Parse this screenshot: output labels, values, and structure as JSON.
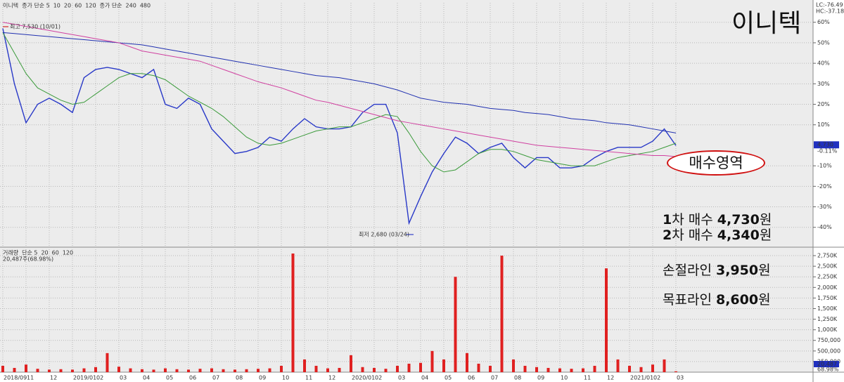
{
  "overlay": {
    "title": "이니텍",
    "zone_label": "매수영역",
    "plans": [
      {
        "num": "1",
        "label": "차 매수",
        "price": "4,730",
        "unit": "원"
      },
      {
        "num": "2",
        "label": "차 매수",
        "price": "4,340",
        "unit": "원"
      },
      {
        "label": "손절라인",
        "price": "3,950",
        "unit": "원"
      },
      {
        "label": "목표라인",
        "price": "8,600",
        "unit": "원"
      }
    ]
  },
  "chart_data": [
    {
      "type": "line",
      "categories": [
        "2018/09",
        null,
        "11",
        null,
        "12",
        null,
        "2019/01",
        null,
        "02",
        null,
        "03",
        null,
        "04",
        null,
        "05",
        null,
        "06",
        null,
        "07",
        null,
        "08",
        null,
        "09",
        null,
        "10",
        null,
        "11",
        null,
        "12",
        null,
        "2020/01",
        null,
        "02",
        null,
        "03",
        null,
        "04",
        null,
        "05",
        null,
        "06",
        null,
        "07",
        null,
        "08",
        null,
        "09",
        null,
        "10",
        null,
        "11",
        null,
        "12",
        null,
        "2021/01",
        null,
        "02",
        null,
        "03"
      ],
      "series": [
        {
          "name": "이니텍",
          "color": "#2838c8",
          "values": [
            57,
            30,
            11,
            20,
            23,
            20,
            16,
            33,
            37,
            38,
            37,
            35,
            33,
            37,
            20,
            18,
            23,
            20,
            8,
            2,
            -4,
            -3,
            -1,
            4,
            2,
            8,
            13,
            9,
            8,
            8,
            9,
            16,
            20,
            20,
            6,
            -38,
            -25,
            -13,
            -4,
            4,
            1,
            -4,
            -1,
            1,
            -6,
            -11,
            -6,
            -6,
            -11,
            -11,
            -10,
            -6,
            -3,
            -1,
            -1,
            -1,
            2,
            8,
            -0.11
          ]
        },
        {
          "name": "60",
          "color": "#3a9a3a",
          "values": [
            55,
            45,
            35,
            28,
            25,
            22,
            20,
            21,
            25,
            29,
            33,
            35,
            35,
            34,
            32,
            28,
            24,
            21,
            18,
            14,
            9,
            4,
            1,
            0,
            1,
            3,
            5,
            7,
            8,
            9,
            9,
            11,
            13,
            15,
            14,
            6,
            -3,
            -10,
            -13,
            -12,
            -8,
            -4,
            -2,
            -2,
            -3,
            -5,
            -7,
            -8,
            -9,
            -10,
            -10,
            -10,
            -8,
            -6,
            -5,
            -4,
            -3,
            -1,
            1
          ]
        },
        {
          "name": "240",
          "color": "#2030b0",
          "values": [
            55,
            54.5,
            54,
            53.5,
            53,
            52.5,
            52,
            51.5,
            51,
            50.5,
            50,
            49.5,
            49,
            48,
            47,
            46,
            45,
            44,
            43,
            42,
            41,
            40,
            39,
            38,
            37,
            36,
            35,
            34,
            33.5,
            33,
            32,
            31,
            30,
            28.5,
            27,
            25,
            23,
            22,
            21,
            20.5,
            20,
            19,
            18,
            17.5,
            17,
            16,
            15.5,
            15,
            14,
            13,
            12.5,
            12,
            11,
            10.5,
            10,
            9,
            8,
            7,
            6
          ]
        },
        {
          "name": "480",
          "color": "#d040a0",
          "values": [
            60,
            59,
            58,
            57,
            56,
            55,
            54,
            53,
            52,
            51,
            50,
            48,
            46,
            45,
            44,
            43,
            42,
            41,
            39,
            37,
            35,
            33,
            31,
            29.5,
            28,
            26,
            24,
            22,
            21,
            19.5,
            18,
            16.5,
            15,
            13.5,
            12,
            11,
            10,
            9,
            8,
            7,
            6,
            5,
            4,
            3,
            2,
            1,
            0,
            -0.5,
            -1,
            -1.5,
            -2,
            -2.5,
            -3,
            -3.5,
            -4,
            -4.5,
            -5,
            -5,
            -5.5
          ]
        }
      ],
      "legend_extra": {
        "short_prefix": "종가 단순 5",
        "short_mid": [
          "10",
          "20"
        ],
        "short_tail": "120",
        "long_prefix": "종가 단순"
      },
      "ylim": [
        -49,
        69.5
      ],
      "yticks": [
        {
          "value": 60,
          "label": "60%"
        },
        {
          "value": 50,
          "label": "50%"
        },
        {
          "value": 40,
          "label": "40%"
        },
        {
          "value": 30,
          "label": "30%"
        },
        {
          "value": 20,
          "label": "20%"
        },
        {
          "value": 10,
          "label": "10%"
        },
        {
          "value": -10,
          "label": "-10%"
        },
        {
          "value": -20,
          "label": "-20%"
        },
        {
          "value": -30,
          "label": "-30%"
        },
        {
          "value": -40,
          "label": "-40%"
        }
      ],
      "grid": true,
      "high_label": "최고 7,530 (10/01)",
      "low_label": "최저 2,680 (03/24)",
      "lc_label": "LC:-76.49",
      "hc_label": "HC:-37.18",
      "last_price_label": "4,730",
      "last_change_label": "-0.11%"
    },
    {
      "type": "bar",
      "categories": [
        "2018/09",
        null,
        "11",
        null,
        "12",
        null,
        "2019/01",
        null,
        "02",
        null,
        "03",
        null,
        "04",
        null,
        "05",
        null,
        "06",
        null,
        "07",
        null,
        "08",
        null,
        "09",
        null,
        "10",
        null,
        "11",
        null,
        "12",
        null,
        "2020/01",
        null,
        "02",
        null,
        "03",
        null,
        "04",
        null,
        "05",
        null,
        "06",
        null,
        "07",
        null,
        "08",
        null,
        "09",
        null,
        "10",
        null,
        "11",
        null,
        "12",
        null,
        "2021/01",
        null,
        "02",
        null,
        "03"
      ],
      "series": [
        {
          "name": "거래량",
          "color": "#e02020",
          "values": [
            150000,
            100000,
            180000,
            80000,
            60000,
            70000,
            60000,
            90000,
            120000,
            450000,
            130000,
            90000,
            70000,
            60000,
            90000,
            70000,
            60000,
            80000,
            90000,
            70000,
            60000,
            70000,
            80000,
            90000,
            150000,
            2800000,
            300000,
            150000,
            90000,
            100000,
            400000,
            120000,
            100000,
            80000,
            150000,
            200000,
            220000,
            500000,
            300000,
            2250000,
            450000,
            200000,
            150000,
            2750000,
            300000,
            150000,
            120000,
            100000,
            90000,
            80000,
            90000,
            150000,
            2450000,
            300000,
            150000,
            120000,
            180000,
            300000,
            20487
          ]
        }
      ],
      "legend_extra": [
        "단순 5",
        "20",
        "60",
        "120"
      ],
      "info_label": "20,487주(68.98%)",
      "last_volume_label": "20,487",
      "last_ratio_label": "68.98%",
      "ylim": [
        0,
        2900000
      ],
      "yticks": [
        {
          "value": 250000,
          "label": "250,000"
        },
        {
          "value": 500000,
          "label": "500,000"
        },
        {
          "value": 750000,
          "label": "750,000"
        },
        {
          "value": 1000000,
          "label": "1,000K"
        },
        {
          "value": 1250000,
          "label": "1,250K"
        },
        {
          "value": 1500000,
          "label": "1,500K"
        },
        {
          "value": 1750000,
          "label": "1,750K"
        },
        {
          "value": 2000000,
          "label": "2,000K"
        },
        {
          "value": 2250000,
          "label": "2,250K"
        },
        {
          "value": 2500000,
          "label": "2,500K"
        },
        {
          "value": 2750000,
          "label": "2,750K"
        }
      ],
      "grid": true
    }
  ]
}
